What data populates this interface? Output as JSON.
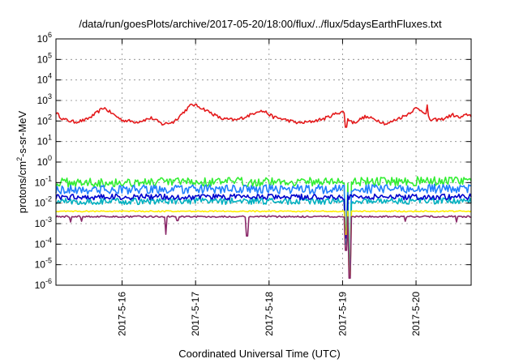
{
  "chart_data": {
    "type": "line",
    "title": "/data/run/goesPlots/archive/2017-05-20/18:00/flux/../flux/5daysEarthFluxes.txt",
    "xlabel": "Coordinated Universal Time (UTC)",
    "ylabel": "protons/cm^2-s-sr-MeV",
    "ylabel_parts": {
      "pre": "protons/cm",
      "sup": "2",
      "post": "-s-sr-MeV"
    },
    "yscale": "log",
    "ylim": [
      1e-06,
      1000000.0
    ],
    "xlim_days": [
      15.1,
      20.75
    ],
    "x_axis_base": "2017-05",
    "grid": true,
    "legend": "none",
    "x_ticks": [
      {
        "label": "2017-5-16",
        "day": 16
      },
      {
        "label": "2017-5-17",
        "day": 17
      },
      {
        "label": "2017-5-18",
        "day": 18
      },
      {
        "label": "2017-5-19",
        "day": 19
      },
      {
        "label": "2017-5-20",
        "day": 20
      }
    ],
    "y_ticks": [
      {
        "base": "10",
        "exp": "-6",
        "value": 1e-06
      },
      {
        "base": "10",
        "exp": "-5",
        "value": 1e-05
      },
      {
        "base": "10",
        "exp": "-4",
        "value": 0.0001
      },
      {
        "base": "10",
        "exp": "-3",
        "value": 0.001
      },
      {
        "base": "10",
        "exp": "-2",
        "value": 0.01
      },
      {
        "base": "10",
        "exp": "-1",
        "value": 0.1
      },
      {
        "base": "10",
        "exp": "0",
        "value": 1
      },
      {
        "base": "10",
        "exp": "1",
        "value": 10
      },
      {
        "base": "10",
        "exp": "2",
        "value": 100
      },
      {
        "base": "10",
        "exp": "3",
        "value": 1000
      },
      {
        "base": "10",
        "exp": "4",
        "value": 10000
      },
      {
        "base": "10",
        "exp": "5",
        "value": 100000
      },
      {
        "base": "10",
        "exp": "6",
        "value": 1000000
      }
    ],
    "series": [
      {
        "color": "#e41a1c",
        "base_points": [
          [
            15.1,
            250
          ],
          [
            15.2,
            120
          ],
          [
            15.35,
            90
          ],
          [
            15.5,
            110
          ],
          [
            15.6,
            180
          ],
          [
            15.75,
            450
          ],
          [
            15.85,
            250
          ],
          [
            16.0,
            110
          ],
          [
            16.2,
            90
          ],
          [
            16.4,
            140
          ],
          [
            16.55,
            70
          ],
          [
            16.7,
            90
          ],
          [
            16.85,
            300
          ],
          [
            16.95,
            650
          ],
          [
            17.05,
            500
          ],
          [
            17.2,
            260
          ],
          [
            17.35,
            130
          ],
          [
            17.55,
            110
          ],
          [
            17.75,
            200
          ],
          [
            17.85,
            320
          ],
          [
            17.95,
            280
          ],
          [
            18.05,
            160
          ],
          [
            18.2,
            120
          ],
          [
            18.4,
            80
          ],
          [
            18.55,
            90
          ],
          [
            18.75,
            130
          ],
          [
            18.9,
            220
          ],
          [
            19.0,
            300
          ],
          [
            19.05,
            150
          ],
          [
            19.15,
            80
          ],
          [
            19.3,
            160
          ],
          [
            19.45,
            120
          ],
          [
            19.6,
            70
          ],
          [
            19.75,
            130
          ],
          [
            19.85,
            180
          ],
          [
            20.0,
            420
          ],
          [
            20.1,
            300
          ],
          [
            20.2,
            110
          ],
          [
            20.35,
            120
          ],
          [
            20.5,
            200
          ],
          [
            20.6,
            140
          ],
          [
            20.7,
            210
          ],
          [
            20.75,
            180
          ]
        ],
        "noise": 0.08,
        "spikes": [
          [
            19.05,
            50
          ],
          [
            20.15,
            600
          ]
        ]
      },
      {
        "color": "#33ee33",
        "base_points": [
          [
            15.1,
            0.1
          ],
          [
            20.75,
            0.12
          ]
        ],
        "noise": 0.22,
        "spikes": [
          [
            19.05,
            0.0005
          ],
          [
            19.1,
            2e-05
          ]
        ]
      },
      {
        "color": "#1f7ffe",
        "base_points": [
          [
            15.1,
            0.045
          ],
          [
            20.75,
            0.05
          ]
        ],
        "noise": 0.22,
        "spikes": [
          [
            19.05,
            0.0002
          ],
          [
            19.1,
            1e-05
          ]
        ]
      },
      {
        "color": "#00b0c0",
        "base_points": [
          [
            15.1,
            0.012
          ],
          [
            20.75,
            0.013
          ]
        ],
        "noise": 0.16,
        "spikes": [
          [
            19.05,
            0.0001
          ],
          [
            19.1,
            5e-06
          ]
        ]
      },
      {
        "color": "#0000cc",
        "base_points": [
          [
            15.1,
            0.02
          ],
          [
            20.75,
            0.02
          ]
        ],
        "noise": 0.14,
        "spikes": [
          [
            19.05,
            0.0002
          ]
        ]
      },
      {
        "color": "#ffee00",
        "base_points": [
          [
            15.1,
            0.004
          ],
          [
            20.75,
            0.004
          ]
        ],
        "noise": 0.03,
        "spikes": [
          [
            19.05,
            0.0003
          ],
          [
            19.1,
            3e-06
          ]
        ]
      },
      {
        "color": "#8b2a6a",
        "base_points": [
          [
            15.1,
            0.0022
          ],
          [
            20.75,
            0.0022
          ]
        ],
        "noise": 0.04,
        "spikes": [
          [
            16.6,
            0.0003
          ],
          [
            17.7,
            0.00025
          ],
          [
            19.05,
            5e-05
          ],
          [
            19.1,
            2.2e-06
          ],
          [
            15.3,
            0.0012
          ],
          [
            15.45,
            0.0013
          ],
          [
            16.75,
            0.0014
          ],
          [
            19.85,
            0.0013
          ],
          [
            20.55,
            0.0012
          ]
        ]
      }
    ]
  }
}
